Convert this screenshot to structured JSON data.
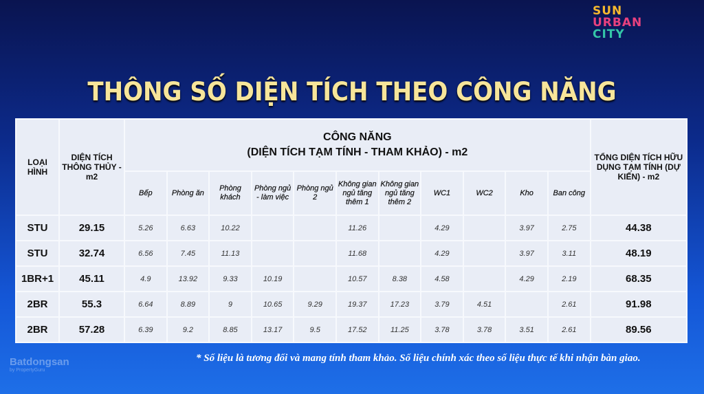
{
  "logo": [
    "SUN",
    "URBAN",
    "CITY"
  ],
  "title": "THÔNG SỐ DIỆN TÍCH THEO CÔNG NĂNG",
  "headers": {
    "type": "LOẠI HÌNH",
    "area": "DIỆN TÍCH THÔNG THỦY - m2",
    "group_line1": "CÔNG NĂNG",
    "group_line2": "(DIỆN TÍCH TẠM TÍNH - THAM KHẢO) - m2",
    "total": "TỔNG DIỆN TÍCH HỮU DỤNG TẠM TÍNH (DỰ KIẾN) - m2",
    "sub": [
      "Bếp",
      "Phòng ăn",
      "Phòng khách",
      "Phòng ngủ - làm việc",
      "Phòng ngủ 2",
      "Không gian ngủ tăng thêm 1",
      "Không gian ngủ tăng thêm 2",
      "WC1",
      "WC2",
      "Kho",
      "Ban công"
    ]
  },
  "rows": [
    {
      "type": "STU",
      "area": "29.15",
      "cells": [
        "5.26",
        "6.63",
        "10.22",
        "",
        "",
        "11.26",
        "",
        "4.29",
        "",
        "3.97",
        "2.75"
      ],
      "total": "44.38"
    },
    {
      "type": "STU",
      "area": "32.74",
      "cells": [
        "6.56",
        "7.45",
        "11.13",
        "",
        "",
        "11.68",
        "",
        "4.29",
        "",
        "3.97",
        "3.11"
      ],
      "total": "48.19"
    },
    {
      "type": "1BR+1",
      "area": "45.11",
      "cells": [
        "4.9",
        "13.92",
        "9.33",
        "10.19",
        "",
        "10.57",
        "8.38",
        "4.58",
        "",
        "4.29",
        "2.19"
      ],
      "total": "68.35"
    },
    {
      "type": "2BR",
      "area": "55.3",
      "cells": [
        "6.64",
        "8.89",
        "9",
        "10.65",
        "9.29",
        "19.37",
        "17.23",
        "3.79",
        "4.51",
        "",
        "2.61"
      ],
      "total": "91.98"
    },
    {
      "type": "2BR",
      "area": "57.28",
      "cells": [
        "6.39",
        "9.2",
        "8.85",
        "13.17",
        "9.5",
        "17.52",
        "11.25",
        "3.78",
        "3.78",
        "3.51",
        "2.61"
      ],
      "total": "89.56"
    }
  ],
  "note": "* Số liệu là tương đối và mang tính tham khảo. Số liệu chính xác theo số liệu thực tế khi nhận bàn giao.",
  "watermark": {
    "name": "Batdongsan",
    "sub": "by PropertyGuru"
  }
}
